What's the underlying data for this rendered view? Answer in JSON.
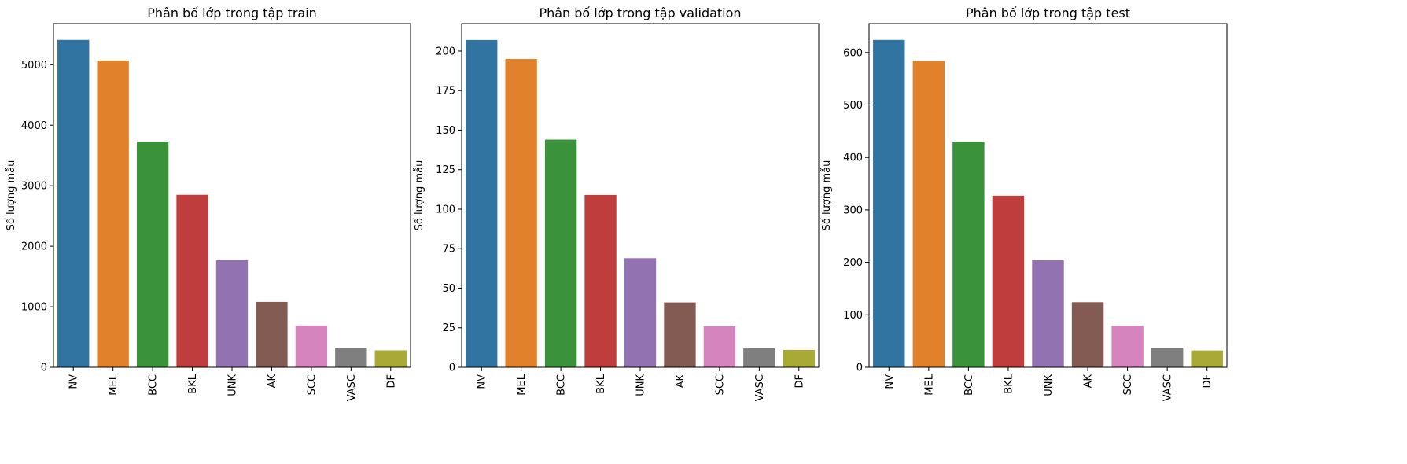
{
  "colors": [
    "#3274a1",
    "#e1812c",
    "#3a923a",
    "#c03d3e",
    "#9372b2",
    "#845b53",
    "#d684bd",
    "#7f7f7f",
    "#a9aa35"
  ],
  "chart_data": [
    {
      "type": "bar",
      "title": "Phân bố lớp trong tập train",
      "xlabel": "",
      "ylabel": "Số lượng mẫu",
      "categories": [
        "NV",
        "MEL",
        "BCC",
        "BKL",
        "UNK",
        "AK",
        "SCC",
        "VASC",
        "DF"
      ],
      "values": [
        5410,
        5070,
        3730,
        2850,
        1770,
        1080,
        690,
        320,
        280
      ],
      "ylim": [
        0,
        5680
      ],
      "yticks": [
        0,
        1000,
        2000,
        3000,
        4000,
        5000
      ],
      "grid": false,
      "legend": "none"
    },
    {
      "type": "bar",
      "title": "Phân bố lớp trong tập validation",
      "xlabel": "",
      "ylabel": "Số lượng mẫu",
      "categories": [
        "NV",
        "MEL",
        "BCC",
        "BKL",
        "UNK",
        "AK",
        "SCC",
        "VASC",
        "DF"
      ],
      "values": [
        207,
        195,
        144,
        109,
        69,
        41,
        26,
        12,
        11
      ],
      "ylim": [
        0,
        217.4
      ],
      "yticks": [
        0,
        25,
        50,
        75,
        100,
        125,
        150,
        175,
        200
      ],
      "grid": false,
      "legend": "none"
    },
    {
      "type": "bar",
      "title": "Phân bố lớp trong tập test",
      "xlabel": "",
      "ylabel": "Số lượng mẫu",
      "categories": [
        "NV",
        "MEL",
        "BCC",
        "BKL",
        "UNK",
        "AK",
        "SCC",
        "VASC",
        "DF"
      ],
      "values": [
        624,
        584,
        430,
        327,
        204,
        124,
        79,
        36,
        32
      ],
      "ylim": [
        0,
        655.2
      ],
      "yticks": [
        0,
        100,
        200,
        300,
        400,
        500,
        600
      ],
      "grid": false,
      "legend": "none"
    }
  ]
}
